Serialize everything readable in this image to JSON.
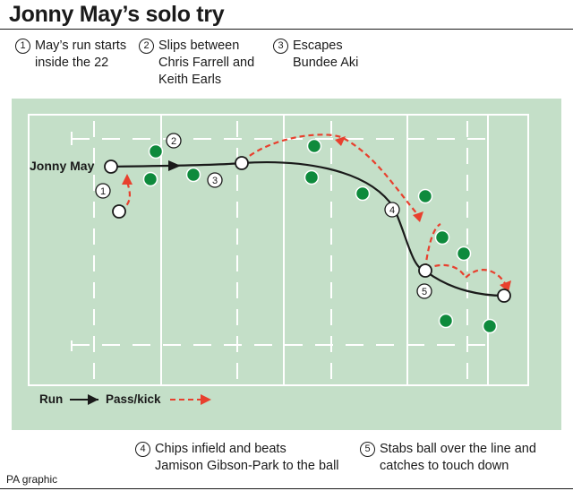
{
  "title": "Jonny May’s solo try",
  "notes": [
    {
      "num": "1",
      "text": "May’s run starts\ninside the 22"
    },
    {
      "num": "2",
      "text": "Slips between\nChris Farrell and\nKeith Earls"
    },
    {
      "num": "3",
      "text": "Escapes\nBundee Aki"
    },
    {
      "num": "4",
      "text": "Chips infield and beats\nJamison Gibson-Park to the ball"
    },
    {
      "num": "5",
      "text": "Stabs ball over the line and\ncatches to touch down"
    }
  ],
  "player_label": "Jonny May",
  "markers": [
    "1",
    "2",
    "3",
    "4",
    "5"
  ],
  "legend": {
    "run": "Run",
    "pass_kick": "Pass/kick"
  },
  "footer": "PA graphic",
  "colors": {
    "pitch": "#c4dfc8",
    "lines": "#ffffff",
    "defender": "#0e8a3c",
    "run": "#1a1a1a",
    "kick": "#e8402e"
  }
}
